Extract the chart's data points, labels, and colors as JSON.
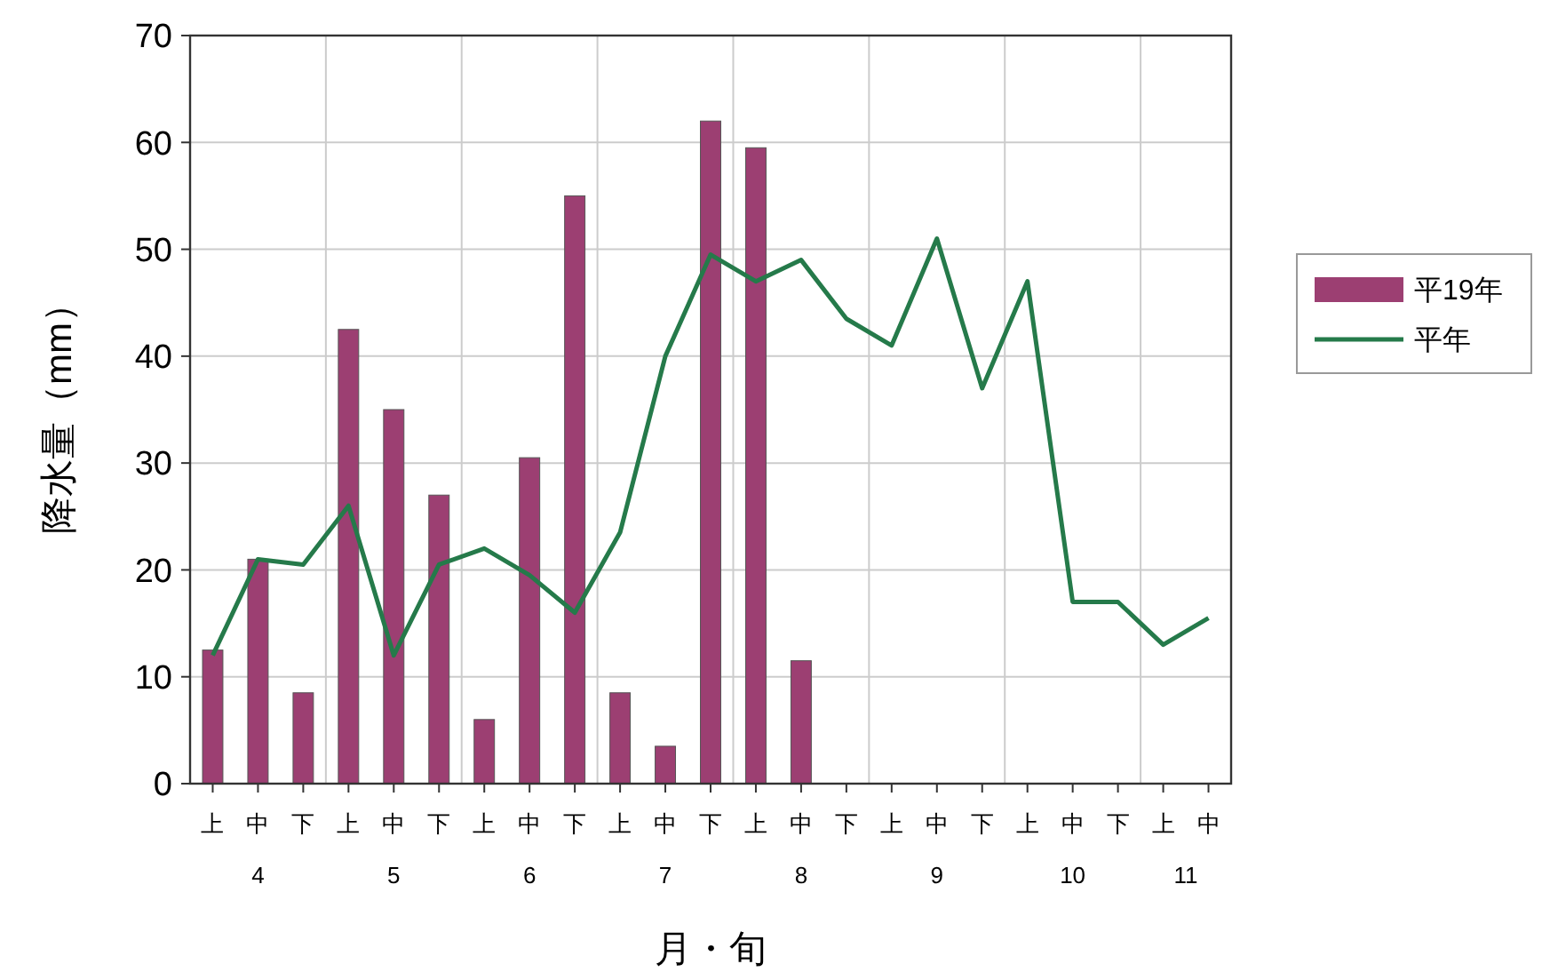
{
  "chart_data": {
    "type": "bar",
    "xlabel": "月・旬",
    "ylabel": "降水量（mm）",
    "categories": [
      "上",
      "中",
      "下",
      "上",
      "中",
      "下",
      "上",
      "中",
      "下",
      "上",
      "中",
      "下",
      "上",
      "中",
      "下",
      "上",
      "中",
      "下",
      "上",
      "中",
      "下",
      "上",
      "中"
    ],
    "annotations": [
      "4",
      "5",
      "6",
      "7",
      "8",
      "9",
      "10",
      "11"
    ],
    "series": [
      {
        "name": "平19年",
        "color": "#9c3f72",
        "values": [
          12.5,
          21,
          8.5,
          42.5,
          35,
          27,
          6,
          30.5,
          55,
          8.5,
          3.5,
          62,
          59.5,
          11.5,
          null,
          null,
          null,
          null,
          null,
          null,
          null,
          null,
          null
        ]
      },
      {
        "name": "平年",
        "type": "line",
        "color": "#257a4a",
        "values": [
          12,
          21,
          20.5,
          26,
          12,
          20.5,
          22,
          19.5,
          16,
          23.5,
          40,
          49.5,
          47,
          49,
          43.5,
          41,
          51,
          37,
          47,
          17,
          17,
          13,
          15.5
        ]
      }
    ],
    "ylim": [
      0,
      70
    ],
    "yticks": [
      0,
      10,
      20,
      30,
      40,
      50,
      60,
      70
    ],
    "grid": true,
    "legend": "right",
    "marker": "none",
    "line_style": "solid"
  }
}
